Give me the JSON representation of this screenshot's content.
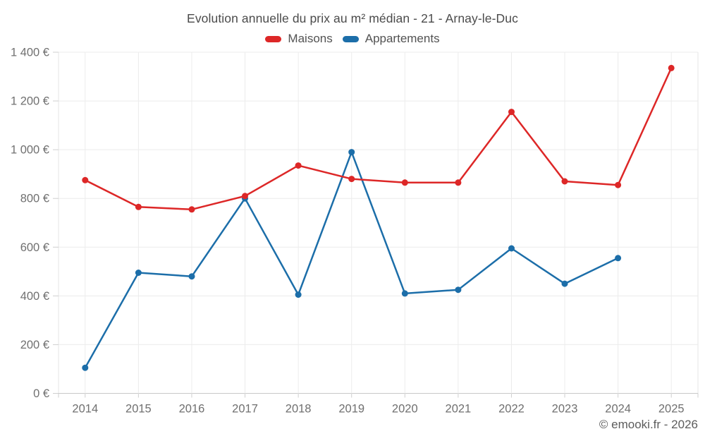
{
  "title": "Evolution annuelle du prix au m² médian - 21 - Arnay-le-Duc",
  "footer": "© emooki.fr - 2026",
  "legend": {
    "items": [
      {
        "label": "Maisons",
        "color": "#dd2727"
      },
      {
        "label": "Appartements",
        "color": "#1c6ea9"
      }
    ]
  },
  "chart_data": {
    "type": "line",
    "title": "Evolution annuelle du prix au m² médian - 21 - Arnay-le-Duc",
    "categories": [
      "2014",
      "2015",
      "2016",
      "2017",
      "2018",
      "2019",
      "2020",
      "2021",
      "2022",
      "2023",
      "2024",
      "2025"
    ],
    "series": [
      {
        "name": "Maisons",
        "color": "#dd2727",
        "values": [
          875,
          765,
          755,
          810,
          935,
          880,
          865,
          865,
          1155,
          870,
          855,
          1335
        ]
      },
      {
        "name": "Appartements",
        "color": "#1c6ea9",
        "values": [
          105,
          495,
          480,
          800,
          405,
          990,
          410,
          425,
          595,
          450,
          555,
          null
        ]
      }
    ],
    "xlabel": "",
    "ylabel": "",
    "ylim": [
      0,
      1400
    ],
    "ytick_step": 200,
    "ytick_labels": [
      "0 €",
      "200 €",
      "400 €",
      "600 €",
      "800 €",
      "1 000 €",
      "1 200 €",
      "1 400 €"
    ],
    "grid": true,
    "legend_position": "top",
    "colors": {
      "gridline": "#ececec",
      "axis_line": "#c9c9c9",
      "plot_border": "#e4e4e4",
      "tick": "#cfcfcf",
      "axis_text": "#707070"
    }
  }
}
